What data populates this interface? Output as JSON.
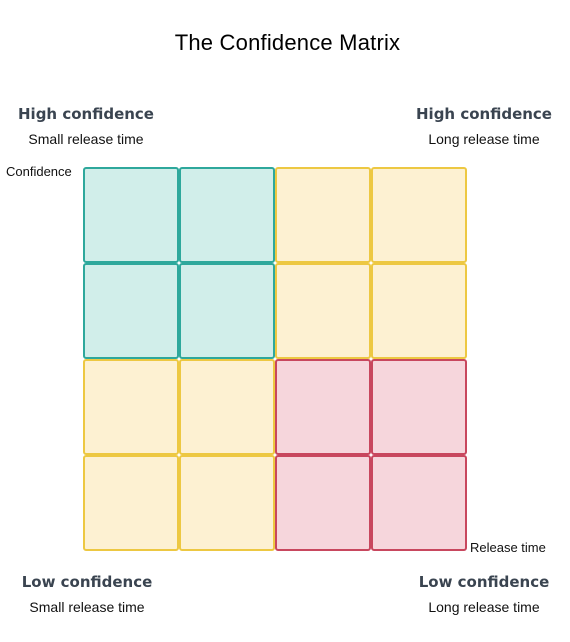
{
  "title": "The Confidence Matrix",
  "corners": {
    "top_left": {
      "heading": "High confidence",
      "sub": "Small release time"
    },
    "top_right": {
      "heading": "High confidence",
      "sub": "Long release time"
    },
    "bottom_left": {
      "heading": "Low confidence",
      "sub": "Small release time"
    },
    "bottom_right": {
      "heading": "Low confidence",
      "sub": "Long release time"
    }
  },
  "axes": {
    "y_label": "Confidence",
    "x_label": "Release time"
  },
  "matrix": {
    "rows": 4,
    "cols": 4,
    "colors": {
      "green": "#2ea89c",
      "yellow": "#edc842",
      "red": "#c8475e"
    },
    "cells": [
      [
        "green",
        "green",
        "yellow",
        "yellow"
      ],
      [
        "green",
        "green",
        "yellow",
        "yellow"
      ],
      [
        "yellow",
        "yellow",
        "red",
        "red"
      ],
      [
        "yellow",
        "yellow",
        "red",
        "red"
      ]
    ]
  }
}
